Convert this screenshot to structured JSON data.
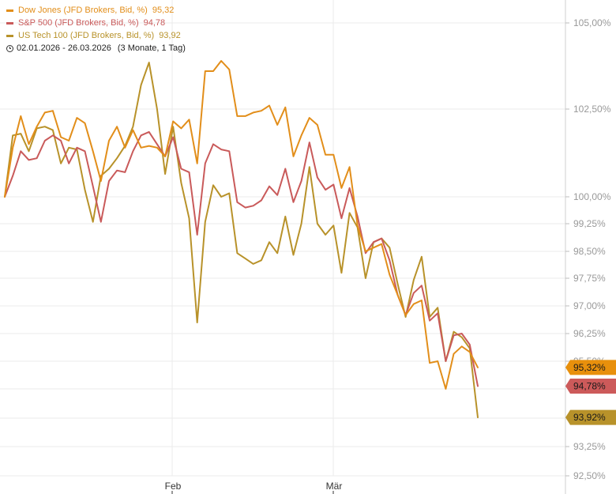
{
  "chart_data": {
    "type": "line",
    "period": "02.01.2026 - 26.03.2026",
    "period_span": "(3 Monate, 1 Tag)",
    "x_ticks": [
      "Feb",
      "Mär"
    ],
    "y_tick_labels": [
      "105,00%",
      "102,50%",
      "100,00%",
      "99,25%",
      "98,50%",
      "97,75%",
      "97,00%",
      "96,25%",
      "95,50%",
      "93,25%",
      "92,50%"
    ],
    "y_tick_values": [
      105.0,
      102.5,
      100.0,
      99.25,
      98.5,
      97.75,
      97.0,
      96.25,
      95.5,
      93.25,
      92.5
    ],
    "y_scale_note_grid_values": [
      105.0,
      102.5,
      100.0,
      99.25,
      98.5,
      97.75,
      97.0,
      96.25,
      95.5,
      94.7,
      93.9,
      93.25,
      92.5
    ],
    "series": [
      {
        "name": "Dow Jones (JFD Brokers, Bid, %)",
        "last_label": "95,32",
        "tag": "95,32%",
        "last": 95.32,
        "color": "#e28e1a",
        "tag_color": "#e8900c",
        "values": [
          100.0,
          101.4,
          102.3,
          101.5,
          102.0,
          102.4,
          102.45,
          101.7,
          101.6,
          102.25,
          102.1,
          101.3,
          100.45,
          101.6,
          102.0,
          101.4,
          101.9,
          101.4,
          101.45,
          101.4,
          101.15,
          102.15,
          101.95,
          102.2,
          100.95,
          103.6,
          103.6,
          103.9,
          103.65,
          102.3,
          102.3,
          102.4,
          102.45,
          102.6,
          102.05,
          102.55,
          101.15,
          101.75,
          102.25,
          102.05,
          101.2,
          101.2,
          100.25,
          100.85,
          99.2,
          98.5,
          98.6,
          98.7,
          97.85,
          97.3,
          96.75,
          97.05,
          97.15,
          95.45,
          95.5,
          94.7,
          95.7,
          95.9,
          95.75,
          95.32
        ]
      },
      {
        "name": "S&P 500 (JFD Brokers, Bid, %)",
        "last_label": "94,78",
        "tag": "94,78%",
        "last": 94.78,
        "color": "#c95a5a",
        "tag_color": "#cc5a5a",
        "values": [
          100.0,
          100.6,
          101.3,
          101.05,
          101.1,
          101.6,
          101.75,
          101.6,
          100.95,
          101.4,
          101.3,
          100.3,
          99.3,
          100.45,
          100.75,
          100.7,
          101.3,
          101.75,
          101.85,
          101.5,
          101.15,
          101.7,
          100.8,
          100.7,
          98.95,
          100.95,
          101.5,
          101.35,
          101.3,
          99.85,
          99.7,
          99.75,
          99.9,
          100.3,
          100.05,
          100.8,
          99.85,
          100.45,
          101.55,
          100.55,
          100.2,
          100.35,
          99.4,
          100.25,
          99.45,
          98.45,
          98.75,
          98.85,
          98.25,
          97.3,
          96.75,
          97.35,
          97.55,
          96.6,
          96.8,
          95.5,
          96.2,
          96.25,
          95.95,
          94.78
        ]
      },
      {
        "name": "US Tech 100 (JFD Brokers, Bid, %)",
        "last_label": "93,92",
        "tag": "93,92%",
        "last": 93.92,
        "color": "#b8922a",
        "tag_color": "#b8922a",
        "values": [
          100.0,
          101.75,
          101.8,
          101.3,
          101.95,
          102.0,
          101.9,
          100.95,
          101.4,
          101.35,
          100.2,
          99.3,
          100.6,
          100.8,
          101.1,
          101.45,
          102.0,
          103.2,
          103.85,
          102.5,
          100.65,
          102.0,
          100.4,
          99.4,
          96.55,
          99.3,
          100.33,
          100.0,
          100.1,
          98.45,
          98.3,
          98.15,
          98.25,
          98.75,
          98.45,
          99.45,
          98.4,
          99.25,
          100.85,
          99.25,
          98.95,
          99.2,
          97.9,
          99.55,
          99.15,
          97.75,
          98.75,
          98.85,
          98.6,
          97.6,
          96.7,
          97.7,
          98.35,
          96.7,
          96.95,
          95.5,
          96.3,
          96.15,
          95.85,
          93.92
        ]
      }
    ]
  }
}
